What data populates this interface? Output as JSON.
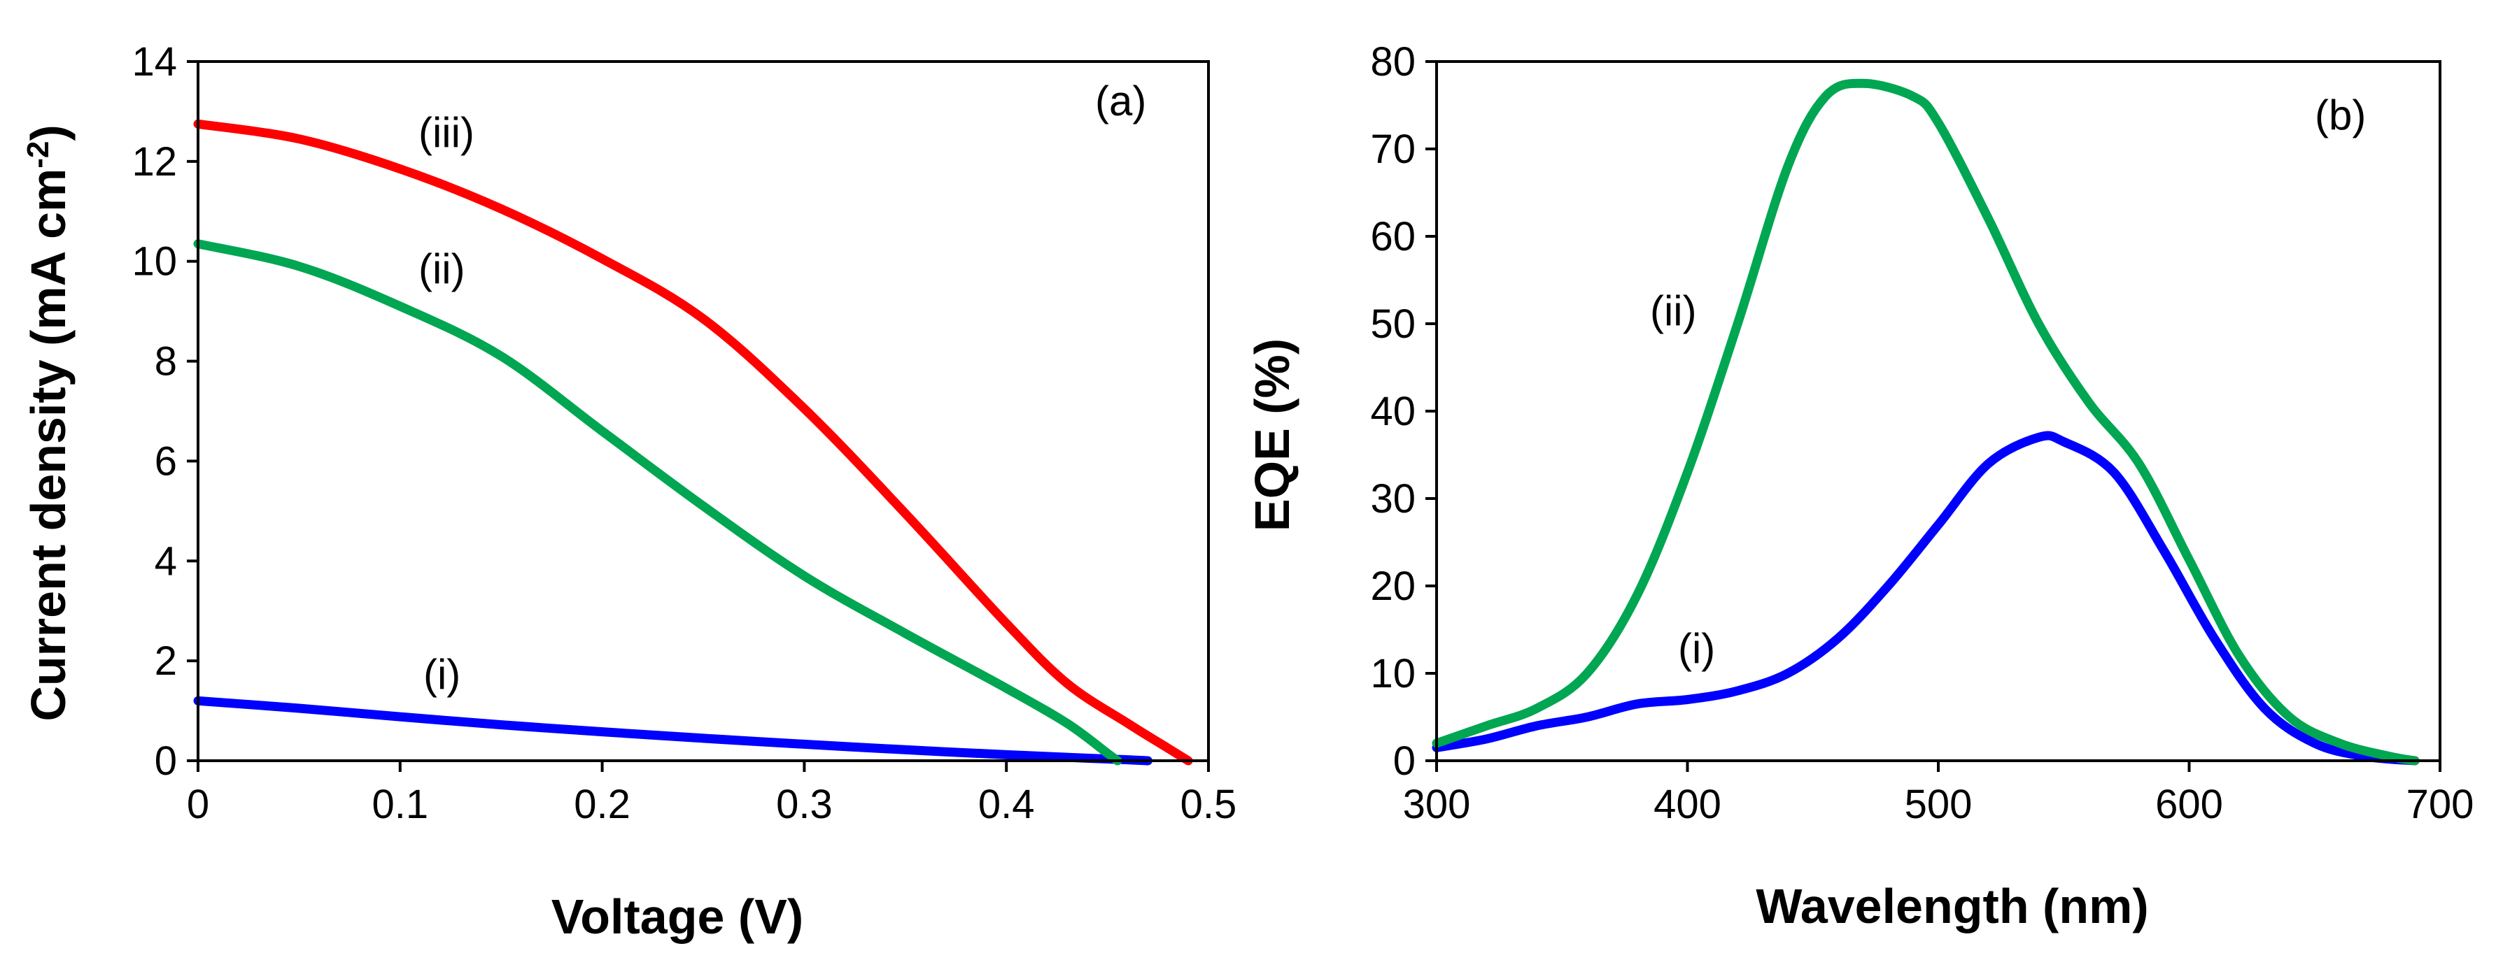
{
  "chart_data": [
    {
      "type": "line",
      "panel_label": "(a)",
      "title": "",
      "xlabel": "Voltage (V)",
      "ylabel_main": "Current density (mA cm",
      "ylabel_sup": "-2",
      "ylabel_close": ")",
      "xlim": [
        0,
        0.5
      ],
      "ylim": [
        0,
        14
      ],
      "xticks": [
        0,
        0.1,
        0.2,
        0.3,
        0.4,
        0.5
      ],
      "xtick_labels": [
        "0",
        "0.1",
        "0.2",
        "0.3",
        "0.4",
        "0.5"
      ],
      "yticks": [
        0,
        2,
        4,
        6,
        8,
        10,
        12,
        14
      ],
      "ytick_labels": [
        "0",
        "2",
        "4",
        "6",
        "8",
        "10",
        "12",
        "14"
      ],
      "series": [
        {
          "name": "(i)",
          "color": "#0000ff",
          "x": [
            0,
            0.05,
            0.1,
            0.15,
            0.2,
            0.25,
            0.3,
            0.35,
            0.4,
            0.44,
            0.46,
            0.47
          ],
          "y": [
            1.2,
            1.05,
            0.88,
            0.72,
            0.58,
            0.45,
            0.33,
            0.22,
            0.12,
            0.05,
            0.02,
            0
          ]
        },
        {
          "name": "(ii)",
          "color": "#00a651",
          "x": [
            0,
            0.05,
            0.1,
            0.15,
            0.2,
            0.25,
            0.3,
            0.35,
            0.4,
            0.43,
            0.45,
            0.455
          ],
          "y": [
            10.35,
            9.9,
            9.1,
            8.1,
            6.6,
            5.1,
            3.7,
            2.55,
            1.45,
            0.75,
            0.15,
            0
          ]
        },
        {
          "name": "(iii)",
          "color": "#ff0000",
          "x": [
            0,
            0.05,
            0.1,
            0.15,
            0.2,
            0.25,
            0.3,
            0.35,
            0.4,
            0.43,
            0.46,
            0.48,
            0.49
          ],
          "y": [
            12.75,
            12.45,
            11.85,
            11.05,
            10.05,
            8.85,
            7.05,
            4.95,
            2.75,
            1.55,
            0.75,
            0.25,
            0
          ]
        }
      ]
    },
    {
      "type": "line",
      "panel_label": "(b)",
      "title": "",
      "xlabel": "Wavelength (nm)",
      "ylabel": "EQE (%)",
      "xlim": [
        300,
        700
      ],
      "ylim": [
        0,
        80
      ],
      "xticks": [
        300,
        400,
        500,
        600,
        700
      ],
      "xtick_labels": [
        "300",
        "400",
        "500",
        "600",
        "700"
      ],
      "yticks": [
        0,
        10,
        20,
        30,
        40,
        50,
        60,
        70,
        80
      ],
      "ytick_labels": [
        "0",
        "10",
        "20",
        "30",
        "40",
        "50",
        "60",
        "70",
        "80"
      ],
      "series": [
        {
          "name": "(i)",
          "color": "#0000ff",
          "x": [
            300,
            320,
            340,
            360,
            380,
            400,
            420,
            440,
            460,
            480,
            500,
            520,
            540,
            550,
            570,
            590,
            610,
            630,
            650,
            670,
            690
          ],
          "y": [
            1.5,
            2.5,
            4,
            5,
            6.5,
            7,
            8,
            10,
            14,
            20,
            27,
            34,
            37,
            36.5,
            33,
            24,
            14,
            6,
            2,
            0.5,
            0
          ]
        },
        {
          "name": "(ii)",
          "color": "#00a651",
          "x": [
            300,
            320,
            340,
            360,
            380,
            400,
            420,
            440,
            455,
            470,
            490,
            500,
            520,
            540,
            560,
            580,
            600,
            620,
            640,
            660,
            680,
            690
          ],
          "y": [
            2,
            4,
            6,
            10,
            19,
            33,
            50,
            68,
            76,
            77.5,
            76,
            73,
            62,
            50,
            41,
            34,
            23,
            12,
            5,
            2,
            0.5,
            0
          ]
        }
      ]
    }
  ]
}
